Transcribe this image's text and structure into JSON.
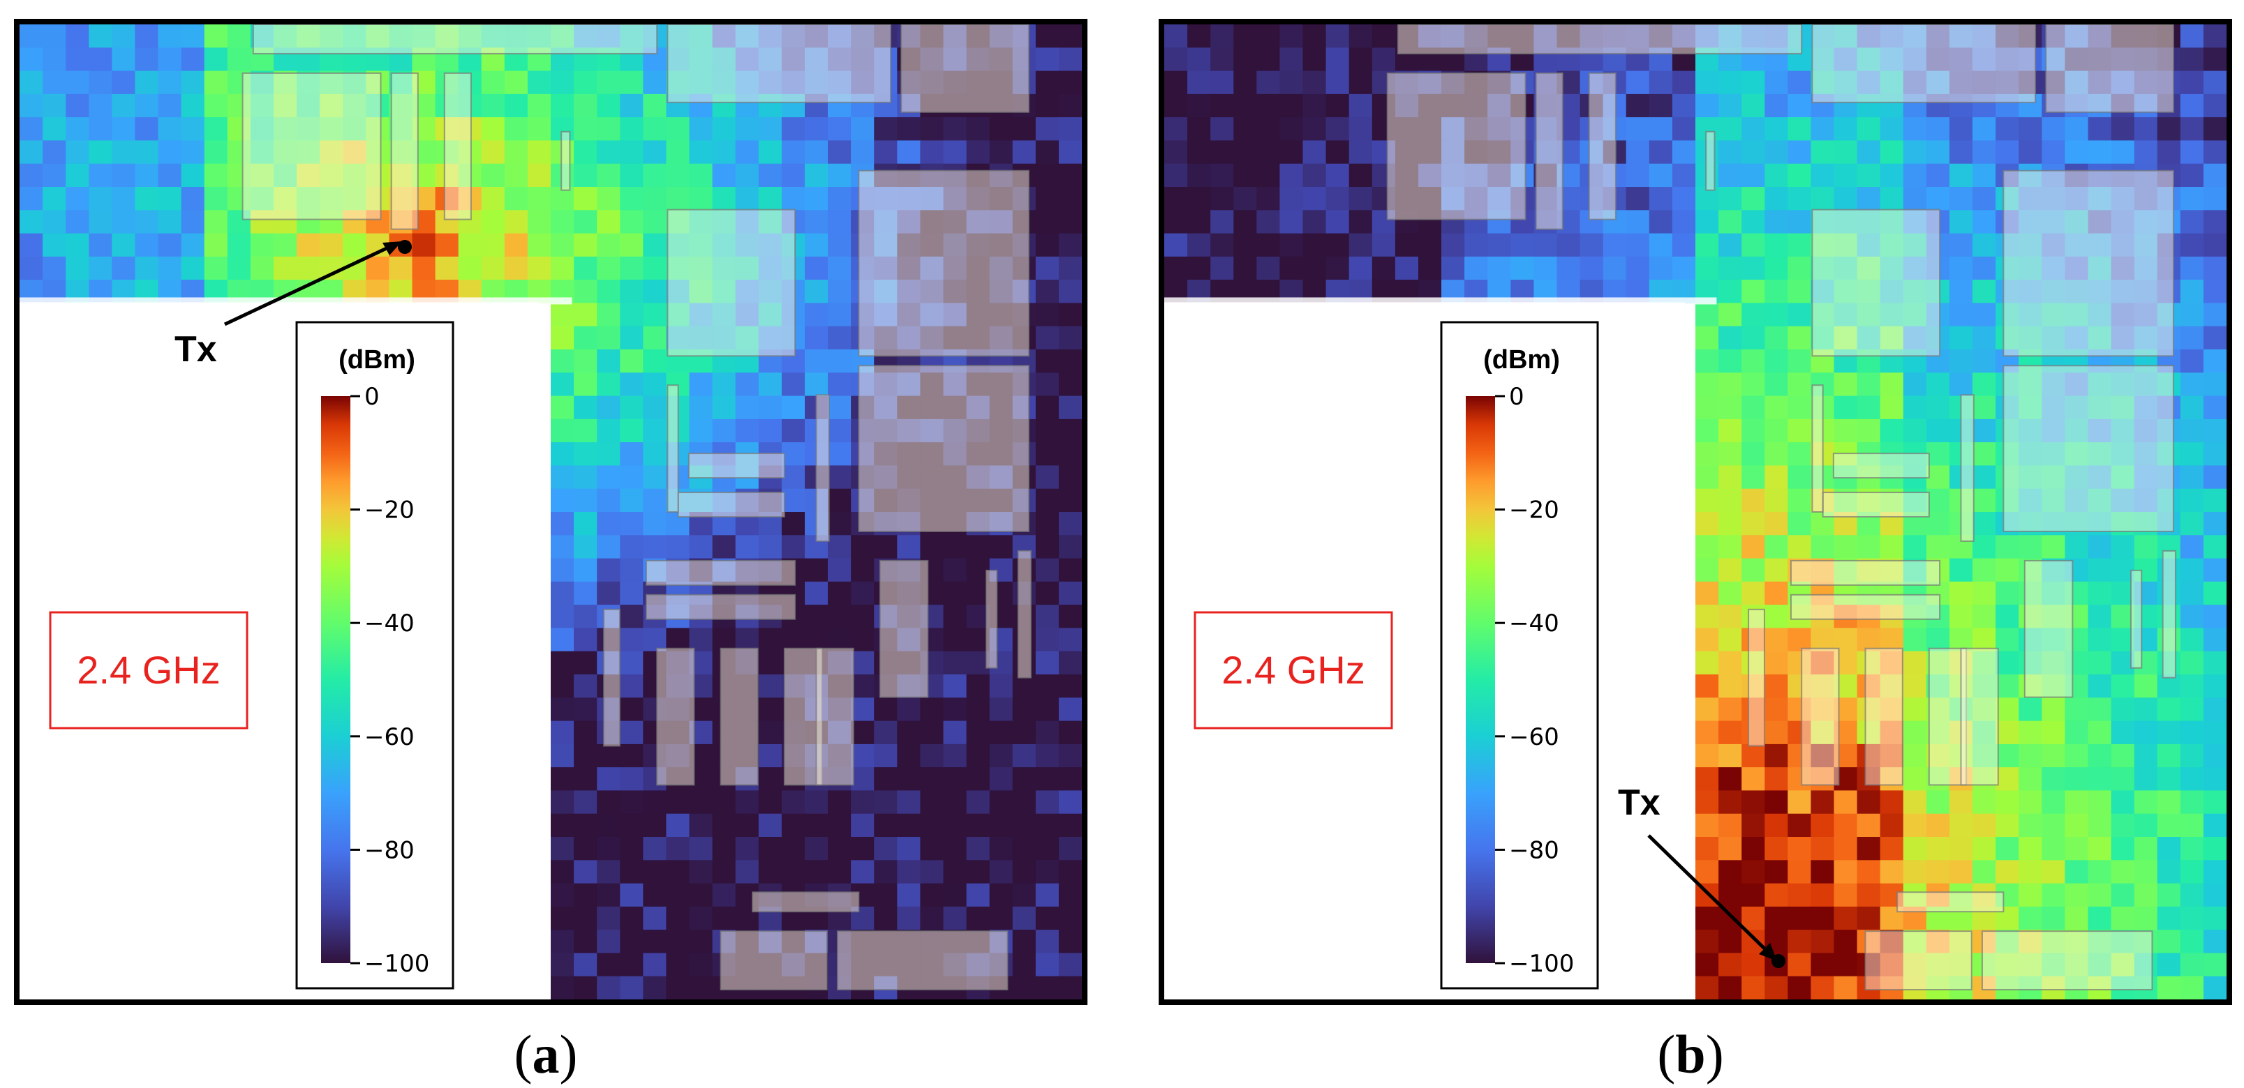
{
  "chart_data": [
    {
      "type": "heatmap",
      "panel": "(a)",
      "frequency": "2.4 GHz",
      "colorbar": {
        "unit": "(dBm)",
        "range": [
          -100,
          0
        ],
        "ticks": [
          0,
          -20,
          -40,
          -60,
          -80,
          -100
        ],
        "tick_labels": [
          "0",
          "−20",
          "−40",
          "−60",
          "−80",
          "−100"
        ],
        "colormap": "turbo"
      },
      "transmitter": {
        "label": "Tx",
        "location": "upper-left, near top edge of wall cutout"
      },
      "signal_levels_dbm": {
        "near_tx": -15,
        "upper_left_room": -30,
        "upper_right_area": -55,
        "right_middle": -60,
        "lower_right_far": -90
      }
    },
    {
      "type": "heatmap",
      "panel": "(b)",
      "frequency": "2.4 GHz",
      "colorbar": {
        "unit": "(dBm)",
        "range": [
          -100,
          0
        ],
        "ticks": [
          0,
          -20,
          -40,
          -60,
          -80,
          -100
        ],
        "tick_labels": [
          "0",
          "−20",
          "−40",
          "−60",
          "−80",
          "−100"
        ],
        "colormap": "turbo"
      },
      "transmitter": {
        "label": "Tx",
        "location": "lower-middle, bottom of vertical corridor"
      },
      "signal_levels_dbm": {
        "near_tx": -5,
        "corridor": -30,
        "right_middle": -50,
        "upper_right_area": -65,
        "upper_left_far": -100
      }
    }
  ],
  "colors": {
    "frame": "#000000",
    "freq_box": "#e8231f",
    "background": "#ffffff"
  }
}
